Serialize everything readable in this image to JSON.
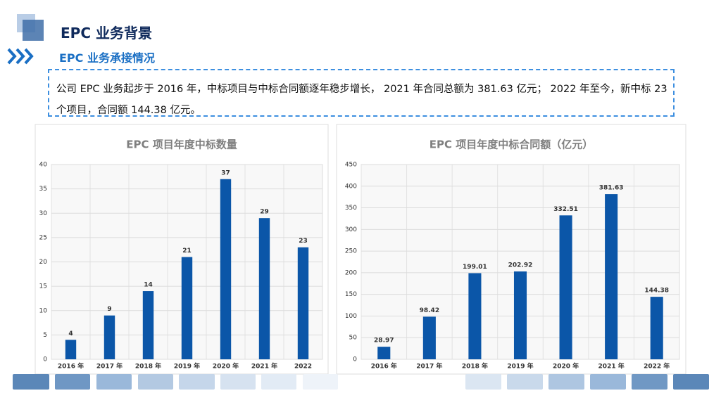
{
  "header": {
    "title": "EPC 业务背景",
    "subtitle": "EPC 业务承接情况"
  },
  "summary": "公司 EPC 业务起步于 2016 年，中标项目与中标合同额逐年稳步增长， 2021 年合同总额为 381.63 亿元； 2022 年至今，新中标 23 个项目，合同额 144.38 亿元。",
  "chart_data": [
    {
      "type": "bar",
      "title": "EPC 项目年度中标数量",
      "categories": [
        "2016 年",
        "2017 年",
        "2018 年",
        "2019 年",
        "2020 年",
        "2021 年",
        "2022"
      ],
      "values": [
        4,
        9,
        14,
        21,
        37,
        29,
        23
      ],
      "color": "#0b56a8",
      "ylim": [
        0,
        40
      ],
      "yticks": [
        0,
        5,
        10,
        15,
        20,
        25,
        30,
        35,
        40
      ],
      "grid": true
    },
    {
      "type": "bar",
      "title": "EPC 项目年度中标合同额（亿元）",
      "categories": [
        "2016 年",
        "2017 年",
        "2018 年",
        "2019 年",
        "2020 年",
        "2021 年",
        "2022 年"
      ],
      "values": [
        28.97,
        98.42,
        199.01,
        202.92,
        332.51,
        381.63,
        144.38
      ],
      "color": "#0b56a8",
      "ylim": [
        0,
        450
      ],
      "yticks": [
        0,
        50,
        100,
        150,
        200,
        250,
        300,
        350,
        400,
        450
      ],
      "grid": true
    }
  ]
}
